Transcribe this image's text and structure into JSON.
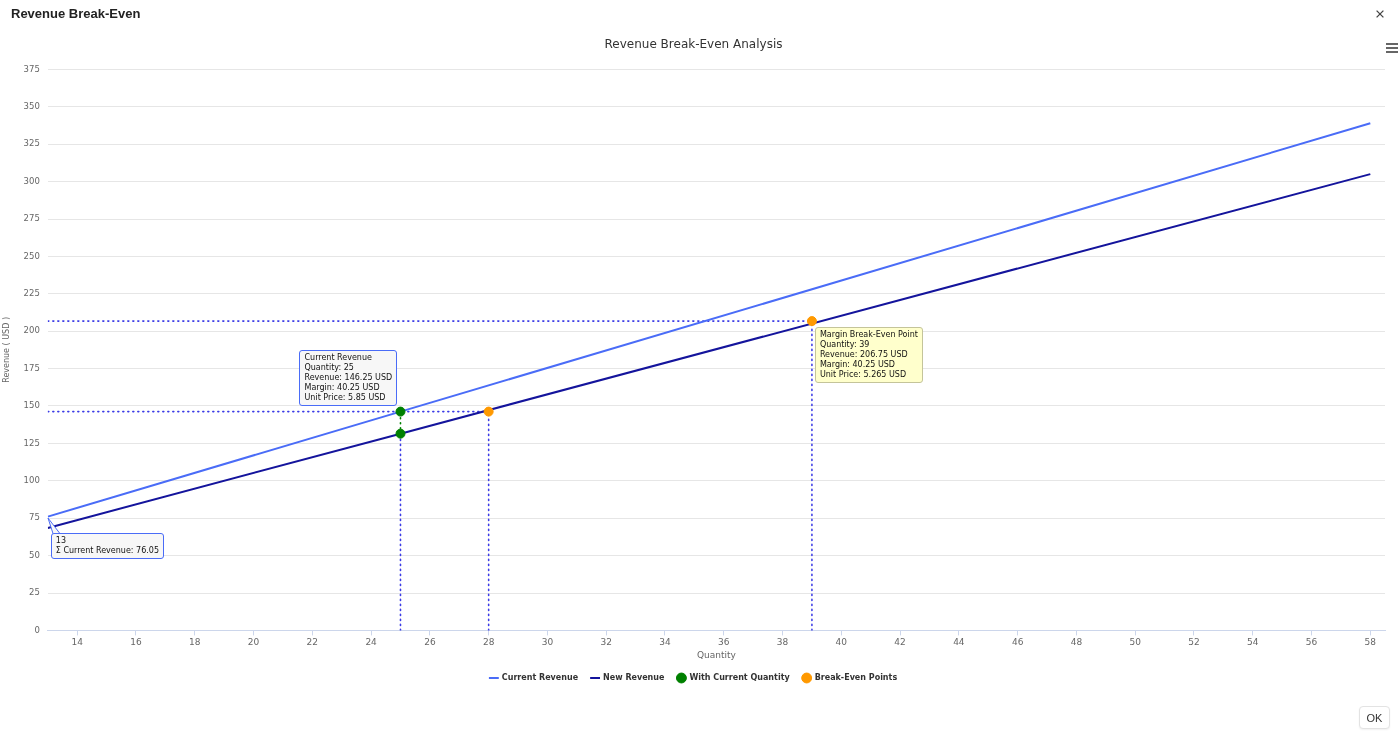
{
  "chart_data": {
    "type": "line",
    "title": "Revenue Break-Even Analysis",
    "xlabel": "Quantity",
    "ylabel": "Revenue ( USD )",
    "xlim": [
      13,
      58.5
    ],
    "xticks": [
      14,
      16,
      18,
      20,
      22,
      24,
      26,
      28,
      30,
      32,
      34,
      36,
      38,
      40,
      42,
      44,
      46,
      48,
      50,
      52,
      54,
      56,
      58
    ],
    "ylim": [
      0,
      375
    ],
    "yticks": [
      0,
      25,
      50,
      75,
      100,
      125,
      150,
      175,
      200,
      225,
      250,
      275,
      300,
      325,
      350,
      375
    ],
    "grid": "y",
    "legend": "bottom",
    "marker": "none",
    "line_style": "solid",
    "series": [
      {
        "name": "Current Revenue",
        "color": "#4a6cf7",
        "x": [
          13,
          25,
          58
        ],
        "values": [
          76.05,
          146.25,
          339
        ]
      },
      {
        "name": "New Revenue",
        "color": "#14149c",
        "x": [
          13,
          25,
          58
        ],
        "values": [
          68.5,
          131.5,
          305
        ]
      },
      {
        "name": "With Current Quantity",
        "type": "scatter",
        "marker": "circle",
        "color": "#008000",
        "x": [
          25,
          25
        ],
        "values": [
          146.25,
          131.5
        ]
      },
      {
        "name": "Break-Even Points",
        "type": "scatter",
        "marker": "circle",
        "color": "#ff9900",
        "x": [
          28,
          39
        ],
        "values": [
          146.25,
          206.75
        ]
      },
      {
        "color": "#3b3be6",
        "line_style": "dotted",
        "x": [
          13,
          28
        ],
        "values": [
          146.25,
          146.25
        ]
      },
      {
        "color": "#3b3be6",
        "line_style": "dotted",
        "x": [
          13,
          39
        ],
        "values": [
          206.75,
          206.75
        ]
      },
      {
        "color": "#3b3be6",
        "line_style": "dotted",
        "x": [
          25,
          25
        ],
        "values": [
          0,
          131.5
        ]
      },
      {
        "color": "#008000",
        "line_style": "dotted",
        "x": [
          25,
          25
        ],
        "values": [
          131.5,
          146.25
        ]
      },
      {
        "color": "#3b3be6",
        "line_style": "dotted",
        "x": [
          28,
          28
        ],
        "values": [
          0,
          146.25
        ]
      },
      {
        "color": "#3b3be6",
        "line_style": "dotted",
        "x": [
          39,
          39
        ],
        "values": [
          0,
          206.75
        ]
      }
    ],
    "annotations": [
      "Revenue Break-Even",
      "OK",
      {
        "text": "13\nΣ Current Revenue: 76.05",
        "x": 13,
        "y": 76.05
      },
      {
        "text": "Current Revenue\nQuantity: 25\nRevenue: 146.25 USD\nMargin: 40.25 USD\nUnit Price: 5.85 USD",
        "x": 25,
        "y": 146.25
      },
      {
        "text": "Margin Break-Even Point\nQuantity: 39\nRevenue: 206.75 USD\nMargin: 40.25 USD\nUnit Price: 5.265 USD",
        "x": 39,
        "y": 206.75
      }
    ]
  }
}
